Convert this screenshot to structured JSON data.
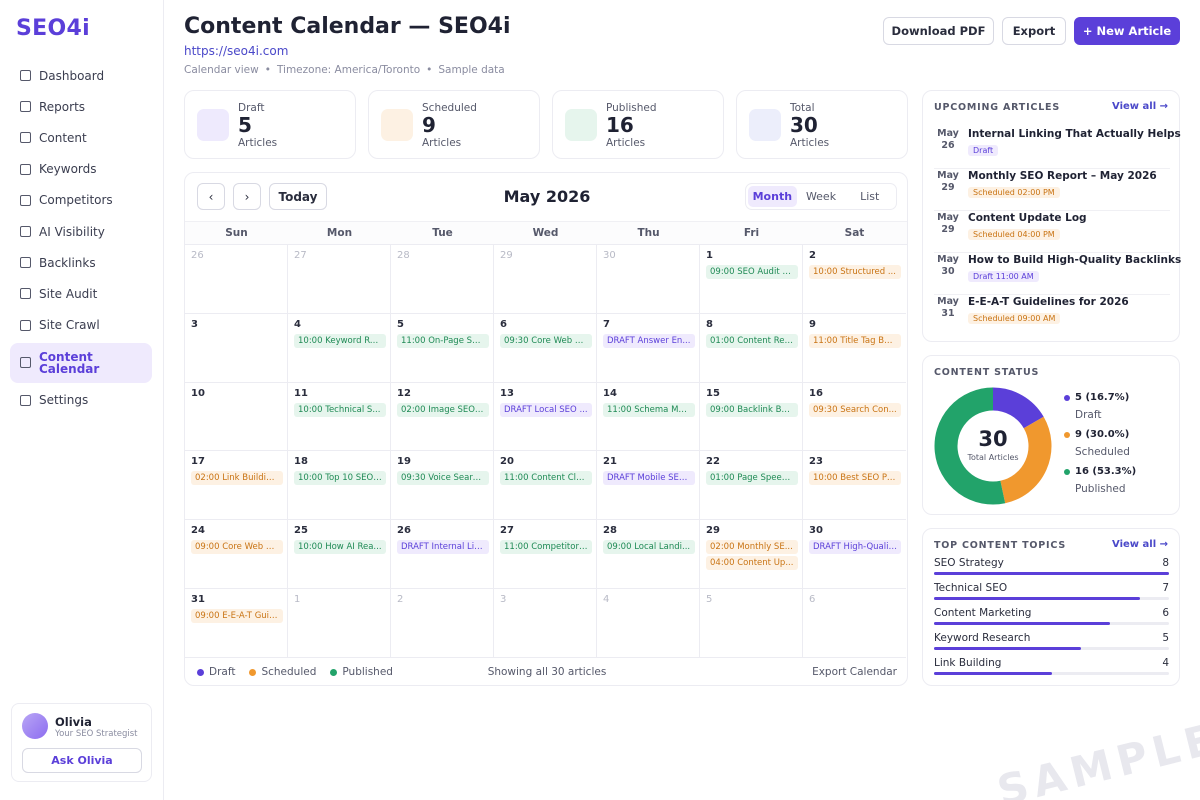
{
  "app": {
    "logo": "SEO4i"
  },
  "sidebar": {
    "items": [
      {
        "label": "Dashboard",
        "name": "sidebar-item-dashboard"
      },
      {
        "label": "Reports",
        "name": "sidebar-item-reports"
      },
      {
        "label": "Content",
        "name": "sidebar-item-content"
      },
      {
        "label": "Keywords",
        "name": "sidebar-item-keywords"
      },
      {
        "label": "Competitors",
        "name": "sidebar-item-competitors"
      },
      {
        "label": "AI Visibility",
        "name": "sidebar-item-ai-visibility"
      },
      {
        "label": "Backlinks",
        "name": "sidebar-item-backlinks"
      },
      {
        "label": "Site Audit",
        "name": "sidebar-item-site-audit"
      },
      {
        "label": "Site Crawl",
        "name": "sidebar-item-site-crawl"
      },
      {
        "label": "Content Calendar",
        "name": "sidebar-item-content-calendar",
        "active": true
      },
      {
        "label": "Settings",
        "name": "sidebar-item-settings"
      }
    ]
  },
  "user": {
    "name": "Olivia",
    "role": "Your SEO Strategist",
    "ask_label": "Ask Olivia"
  },
  "header": {
    "title": "Content Calendar — SEO4i",
    "url": "https://seo4i.com",
    "meta": [
      "Calendar view",
      "•",
      "Timezone: America/Toronto",
      "•",
      "Sample data"
    ],
    "download_pdf": "Download PDF",
    "export": "Export",
    "new_article": "+ New Article"
  },
  "stats": [
    {
      "label": "Draft",
      "value": "5",
      "sub": "Articles",
      "color": "#eeeafd"
    },
    {
      "label": "Scheduled",
      "value": "9",
      "sub": "Articles",
      "color": "#fdf1e3"
    },
    {
      "label": "Published",
      "value": "16",
      "sub": "Articles",
      "color": "#e6f5ed"
    },
    {
      "label": "Total",
      "value": "30",
      "sub": "Articles",
      "color": "#eceefb"
    }
  ],
  "calendar": {
    "prev": "‹",
    "next": "›",
    "today": "Today",
    "month": "May 2026",
    "views": [
      "Month",
      "Week",
      "List"
    ],
    "active_view": "Month",
    "days_of_week": [
      "Sun",
      "Mon",
      "Tue",
      "Wed",
      "Thu",
      "Fri",
      "Sat"
    ],
    "cells": [
      {
        "d": "26",
        "muted": true,
        "events": []
      },
      {
        "d": "27",
        "muted": true,
        "events": []
      },
      {
        "d": "28",
        "muted": true,
        "events": []
      },
      {
        "d": "29",
        "muted": true,
        "events": []
      },
      {
        "d": "30",
        "muted": true,
        "events": []
      },
      {
        "d": "1",
        "events": [
          {
            "t": "09:00 SEO Audit C...",
            "s": "published"
          }
        ]
      },
      {
        "d": "2",
        "events": [
          {
            "t": "10:00 Structured ...",
            "s": "scheduled"
          }
        ]
      },
      {
        "d": "3",
        "events": []
      },
      {
        "d": "4",
        "events": [
          {
            "t": "10:00 Keyword Re...",
            "s": "published"
          }
        ]
      },
      {
        "d": "5",
        "events": [
          {
            "t": "11:00 On-Page SE...",
            "s": "published"
          }
        ]
      },
      {
        "d": "6",
        "events": [
          {
            "t": "09:30 Core Web Vi...",
            "s": "published"
          }
        ]
      },
      {
        "d": "7",
        "events": [
          {
            "t": "DRAFT Answer En...",
            "s": "draft"
          }
        ]
      },
      {
        "d": "8",
        "events": [
          {
            "t": "01:00 Content Ref...",
            "s": "published"
          }
        ]
      },
      {
        "d": "9",
        "events": [
          {
            "t": "11:00 Title Tag Be...",
            "s": "scheduled"
          }
        ]
      },
      {
        "d": "10",
        "events": []
      },
      {
        "d": "11",
        "events": [
          {
            "t": "10:00 Technical S...",
            "s": "published"
          }
        ]
      },
      {
        "d": "12",
        "events": [
          {
            "t": "02:00 Image SEO: ...",
            "s": "published"
          }
        ]
      },
      {
        "d": "13",
        "events": [
          {
            "t": "DRAFT Local SEO ...",
            "s": "draft"
          }
        ]
      },
      {
        "d": "14",
        "events": [
          {
            "t": "11:00 Schema Ma...",
            "s": "published"
          }
        ]
      },
      {
        "d": "15",
        "events": [
          {
            "t": "09:00 Backlink Bui...",
            "s": "published"
          }
        ]
      },
      {
        "d": "16",
        "events": [
          {
            "t": "09:30 Search Con...",
            "s": "scheduled"
          }
        ]
      },
      {
        "d": "17",
        "events": [
          {
            "t": "02:00 Link Buildin...",
            "s": "scheduled"
          }
        ]
      },
      {
        "d": "18",
        "events": [
          {
            "t": "10:00 Top 10 SEO ...",
            "s": "published"
          }
        ]
      },
      {
        "d": "19",
        "events": [
          {
            "t": "09:30 Voice Searc...",
            "s": "published"
          }
        ]
      },
      {
        "d": "20",
        "events": [
          {
            "t": "11:00 Content Clu...",
            "s": "published"
          }
        ]
      },
      {
        "d": "21",
        "events": [
          {
            "t": "DRAFT Mobile SEO...",
            "s": "draft"
          }
        ]
      },
      {
        "d": "22",
        "events": [
          {
            "t": "01:00 Page Speed...",
            "s": "published"
          }
        ]
      },
      {
        "d": "23",
        "events": [
          {
            "t": "10:00 Best SEO Pr...",
            "s": "scheduled"
          }
        ]
      },
      {
        "d": "24",
        "events": [
          {
            "t": "09:00 Core Web Vi...",
            "s": "scheduled"
          }
        ]
      },
      {
        "d": "25",
        "events": [
          {
            "t": "10:00 How AI Rea...",
            "s": "published"
          }
        ]
      },
      {
        "d": "26",
        "events": [
          {
            "t": "DRAFT Internal Lin...",
            "s": "draft"
          }
        ]
      },
      {
        "d": "27",
        "events": [
          {
            "t": "11:00 Competitor ...",
            "s": "published"
          }
        ]
      },
      {
        "d": "28",
        "events": [
          {
            "t": "09:00 Local Landi...",
            "s": "published"
          }
        ]
      },
      {
        "d": "29",
        "events": [
          {
            "t": "02:00 Monthly SE...",
            "s": "scheduled"
          },
          {
            "t": "04:00 Content Up...",
            "s": "scheduled"
          }
        ]
      },
      {
        "d": "30",
        "events": [
          {
            "t": "DRAFT High-Qualit...",
            "s": "draft"
          }
        ]
      },
      {
        "d": "31",
        "events": [
          {
            "t": "09:00 E-E-A-T Guid...",
            "s": "scheduled"
          }
        ]
      },
      {
        "d": "1",
        "muted": true,
        "events": []
      },
      {
        "d": "2",
        "muted": true,
        "events": []
      },
      {
        "d": "3",
        "muted": true,
        "events": []
      },
      {
        "d": "4",
        "muted": true,
        "events": []
      },
      {
        "d": "5",
        "muted": true,
        "events": []
      },
      {
        "d": "6",
        "muted": true,
        "events": []
      }
    ],
    "legend": [
      {
        "label": "Draft",
        "color": "#5b3fd9"
      },
      {
        "label": "Scheduled",
        "color": "#f0982e"
      },
      {
        "label": "Published",
        "color": "#22a36a"
      }
    ],
    "showing": "Showing all 30 articles",
    "export_calendar": "Export Calendar"
  },
  "upcoming": {
    "title": "UPCOMING ARTICLES",
    "view_all": "View all →",
    "items": [
      {
        "month": "May",
        "day": "26",
        "title": "Internal Linking That Actually Helps",
        "badge": "Draft",
        "status": "draft"
      },
      {
        "month": "May",
        "day": "29",
        "title": "Monthly SEO Report – May 2026",
        "badge": "Scheduled 02:00 PM",
        "status": "scheduled"
      },
      {
        "month": "May",
        "day": "29",
        "title": "Content Update Log",
        "badge": "Scheduled 04:00 PM",
        "status": "scheduled"
      },
      {
        "month": "May",
        "day": "30",
        "title": "How to Build High-Quality Backlinks",
        "badge": "Draft 11:00 AM",
        "status": "draft"
      },
      {
        "month": "May",
        "day": "31",
        "title": "E-E-A-T Guidelines for 2026",
        "badge": "Scheduled 09:00 AM",
        "status": "scheduled"
      }
    ]
  },
  "content_status": {
    "title": "CONTENT STATUS",
    "total": "30",
    "total_label": "Total Articles",
    "segments": [
      {
        "value_label": "5 (16.7%)",
        "name": "Draft",
        "count": 5,
        "color": "#5b3fd9"
      },
      {
        "value_label": "9 (30.0%)",
        "name": "Scheduled",
        "count": 9,
        "color": "#f0982e"
      },
      {
        "value_label": "16 (53.3%)",
        "name": "Published",
        "count": 16,
        "color": "#22a36a"
      }
    ]
  },
  "topics": {
    "title": "TOP CONTENT TOPICS",
    "view_all": "View all →",
    "items": [
      {
        "name": "SEO Strategy",
        "count": "8",
        "value": 8
      },
      {
        "name": "Technical SEO",
        "count": "7",
        "value": 7
      },
      {
        "name": "Content Marketing",
        "count": "6",
        "value": 6
      },
      {
        "name": "Keyword Research",
        "count": "5",
        "value": 5
      },
      {
        "name": "Link Building",
        "count": "4",
        "value": 4
      }
    ],
    "max": 8
  },
  "watermark": "SAMPLE"
}
